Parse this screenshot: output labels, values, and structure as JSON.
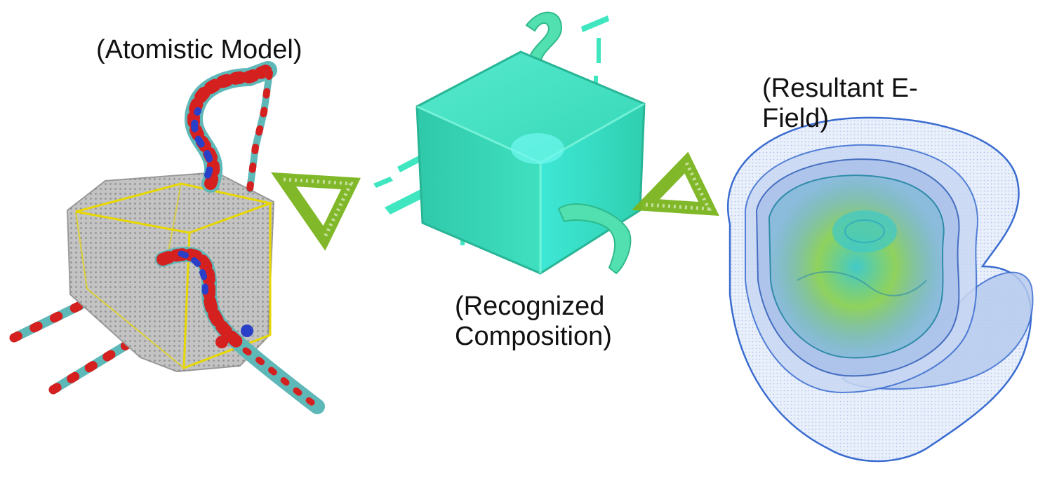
{
  "panels": [
    {
      "label": "(Atomistic Model)"
    },
    {
      "label": "(Recognized\nComposition)"
    },
    {
      "label": "(Resultant E-\nField)"
    }
  ],
  "colors": {
    "arrow": "#7ab41e",
    "nanocube_gray": "#b9b9b9",
    "cube_edges": "#e8d800",
    "composition_cyan": "#3fe6c0",
    "efield_blue": "#3a6cd0",
    "efield_green": "#7fd84a",
    "atom_red": "#d52020",
    "atom_blue": "#2a3fc8",
    "atom_teal": "#5fb8b8"
  }
}
